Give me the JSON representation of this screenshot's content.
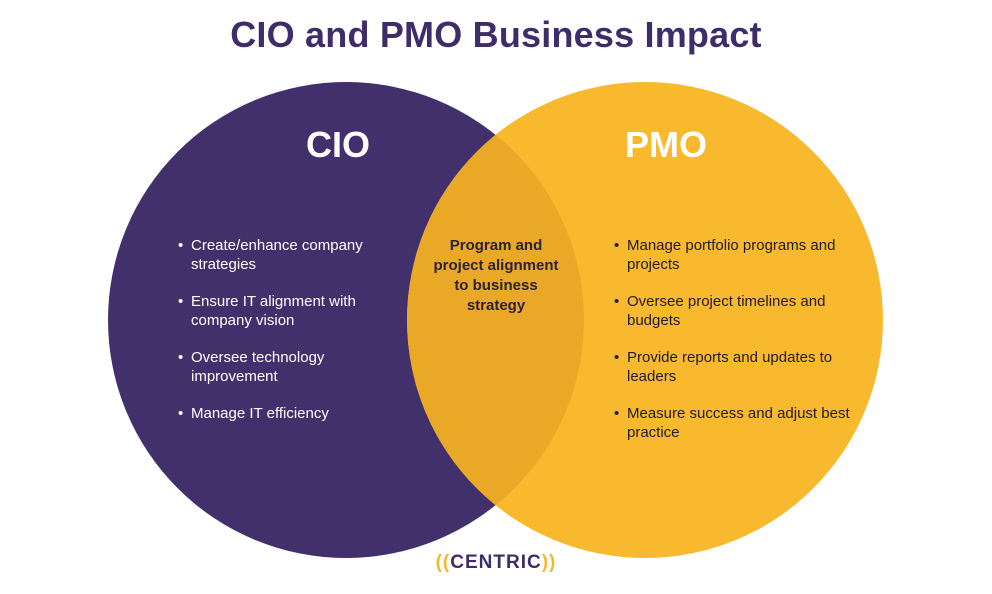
{
  "title": "CIO and PMO Business Impact",
  "colors": {
    "cio_circle": "#41306b",
    "pmo_circle": "#f8b92e",
    "overlap": "#e9a826",
    "title": "#3f2d6a"
  },
  "cio": {
    "heading": "CIO",
    "items": [
      "Create/enhance company strategies",
      "Ensure IT alignment with company vision",
      "Oversee technology improvement",
      "Manage IT efficiency"
    ]
  },
  "pmo": {
    "heading": "PMO",
    "items": [
      "Manage portfolio programs and projects",
      "Oversee project timelines and budgets",
      "Provide reports and updates to leaders",
      "Measure success and adjust best practice"
    ]
  },
  "overlap": {
    "text": "Program and project alignment to business strategy"
  },
  "logo": {
    "left": "((",
    "word": "CENTRIC",
    "right": "))"
  }
}
